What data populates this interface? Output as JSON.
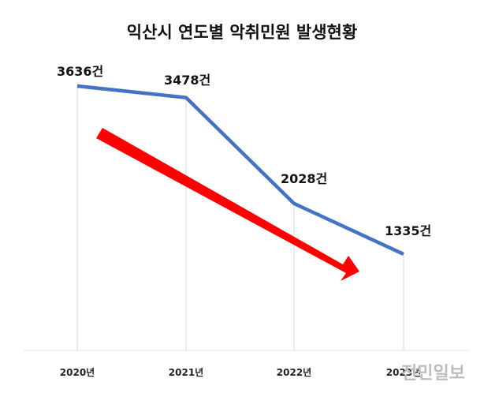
{
  "chart_data": {
    "type": "line",
    "title": "익산시 연도별 악취민원 발생현황",
    "categories": [
      "2020년",
      "2021년",
      "2022년",
      "2023년"
    ],
    "values": [
      3636,
      3478,
      2028,
      1335
    ],
    "data_labels": [
      "3636건",
      "3478건",
      "2028건",
      "1335건"
    ],
    "ylim": [
      0,
      4000
    ],
    "grid": "vertical lines at each category",
    "legend": "none",
    "annotation": "red downward trend arrow",
    "colors": {
      "line": "#4472c4",
      "arrow": "#ff0000",
      "grid": "#d9d9d9"
    }
  },
  "watermark": "전민일보"
}
